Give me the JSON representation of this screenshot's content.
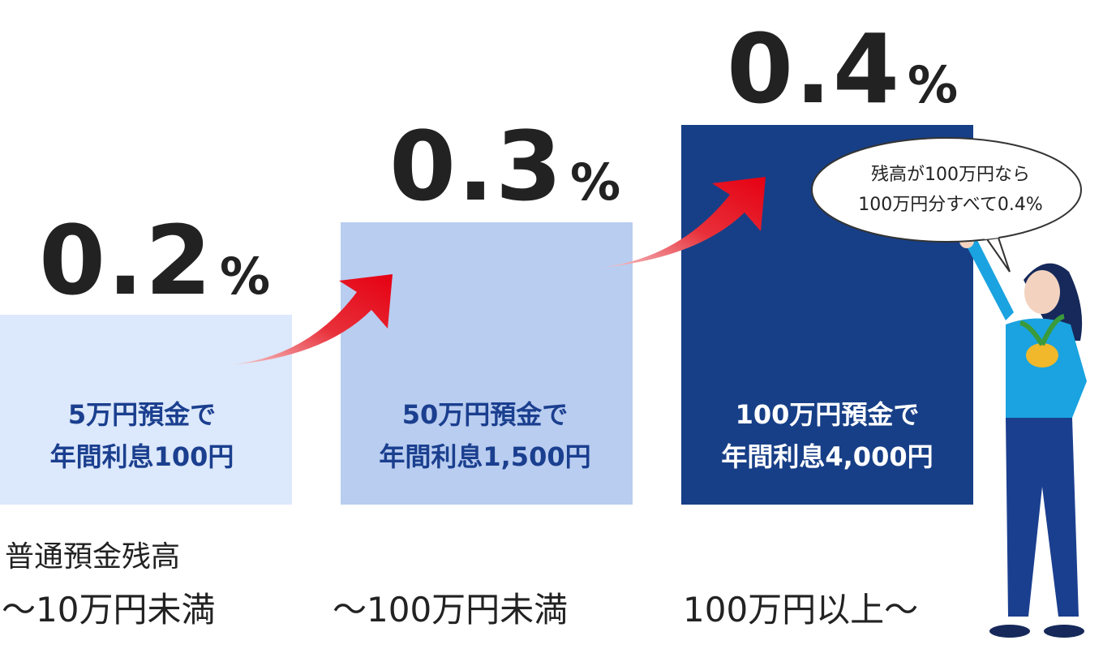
{
  "tiers": [
    {
      "rate": "0.2",
      "unit": "%",
      "caption": [
        "5万円預金で",
        "年間利息100円"
      ],
      "range": "～10万円未満"
    },
    {
      "rate": "0.3",
      "unit": "%",
      "caption": [
        "50万円預金で",
        "年間利息1,500円"
      ],
      "range": "～100万円未満"
    },
    {
      "rate": "0.4",
      "unit": "%",
      "caption": [
        "100万円預金で",
        "年間利息4,000円"
      ],
      "range": "100万円以上～"
    }
  ],
  "balance_label": "普通預金残高",
  "bubble": [
    "残高が100万円なら",
    "100万円分すべて0.4%"
  ]
}
